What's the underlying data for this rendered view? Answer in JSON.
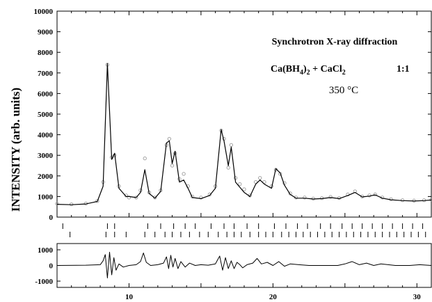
{
  "chart_data": {
    "type": "line",
    "ylabel": "INTENSITY (arb. units)",
    "xlim": [
      5,
      31
    ],
    "x_ticks": [
      "10",
      "20",
      "30"
    ],
    "x_tick_values": [
      10,
      20,
      30
    ],
    "main_panel": {
      "ylim": [
        0,
        10000
      ],
      "y_ticks": [
        "0",
        "1000",
        "2000",
        "3000",
        "4000",
        "5000",
        "6000",
        "7000",
        "8000",
        "9000",
        "10000"
      ],
      "y_tick_values": [
        0,
        1000,
        2000,
        3000,
        4000,
        5000,
        6000,
        7000,
        8000,
        9000,
        10000
      ],
      "series": [
        {
          "style": "open-circles",
          "x": [
            5.0,
            6.0,
            7.0,
            7.8,
            8.2,
            8.5,
            8.8,
            9.0,
            9.3,
            9.8,
            10.0,
            10.5,
            10.8,
            11.1,
            11.4,
            11.8,
            12.2,
            12.6,
            12.8,
            13.0,
            13.2,
            13.5,
            13.8,
            14.1,
            14.4,
            15.0,
            15.6,
            16.0,
            16.4,
            16.6,
            16.9,
            17.1,
            17.4,
            17.7,
            18.0,
            18.4,
            18.8,
            19.1,
            19.4,
            19.9,
            20.2,
            20.5,
            20.8,
            21.2,
            21.6,
            22.2,
            22.8,
            23.4,
            24.0,
            24.6,
            25.2,
            25.7,
            26.2,
            26.7,
            27.1,
            27.6,
            28.2,
            29.0,
            29.8,
            30.5,
            31.0
          ],
          "y": [
            650,
            620,
            660,
            780,
            1700,
            7400,
            2900,
            3000,
            1500,
            1050,
            950,
            950,
            1300,
            2850,
            1200,
            950,
            1300,
            3500,
            3800,
            2500,
            3100,
            1850,
            2100,
            1500,
            1000,
            950,
            1100,
            1500,
            4200,
            3800,
            2400,
            3500,
            1900,
            1600,
            1350,
            1050,
            1700,
            1900,
            1700,
            1500,
            2300,
            2100,
            1650,
            1150,
            950,
            950,
            900,
            920,
            980,
            930,
            1100,
            1250,
            1000,
            1050,
            1100,
            950,
            870,
            820,
            800,
            820,
            850
          ]
        },
        {
          "style": "solid-line",
          "x": [
            5.0,
            6.0,
            7.0,
            7.8,
            8.2,
            8.5,
            8.8,
            9.0,
            9.3,
            9.8,
            10.0,
            10.5,
            10.8,
            11.1,
            11.4,
            11.8,
            12.2,
            12.6,
            12.8,
            13.0,
            13.2,
            13.5,
            13.8,
            14.1,
            14.4,
            15.0,
            15.6,
            16.0,
            16.4,
            16.6,
            16.9,
            17.1,
            17.4,
            17.7,
            18.0,
            18.4,
            18.8,
            19.1,
            19.4,
            19.9,
            20.2,
            20.5,
            20.8,
            21.2,
            21.6,
            22.2,
            22.8,
            23.4,
            24.0,
            24.6,
            25.2,
            25.7,
            26.2,
            26.7,
            27.1,
            27.6,
            28.2,
            29.0,
            29.8,
            30.5,
            31.0
          ],
          "y": [
            620,
            600,
            640,
            760,
            1500,
            7450,
            2800,
            3100,
            1400,
            1000,
            1000,
            950,
            1200,
            2300,
            1150,
            920,
            1250,
            3600,
            3700,
            2600,
            3200,
            1700,
            1800,
            1400,
            950,
            900,
            1050,
            1400,
            4250,
            3700,
            2500,
            3400,
            1700,
            1450,
            1200,
            1000,
            1600,
            1800,
            1600,
            1400,
            2350,
            2150,
            1550,
            1100,
            920,
            920,
            880,
            900,
            950,
            900,
            1050,
            1200,
            980,
            1020,
            1080,
            920,
            840,
            800,
            780,
            800,
            830
          ]
        }
      ]
    },
    "reflection_ticks": {
      "rows": 2,
      "row1_x": [
        5.4,
        8.5,
        9.0,
        11.3,
        12.2,
        13.1,
        13.9,
        14.6,
        15.7,
        16.6,
        17.3,
        18.2,
        19.0,
        20.1,
        20.9,
        21.7,
        22.4,
        23.3,
        24.0,
        24.8,
        25.5,
        26.2,
        26.9,
        27.6,
        28.3,
        29.0,
        29.7,
        30.4
      ],
      "row2_x": [
        5.9,
        8.4,
        9.0,
        9.8,
        11.1,
        11.8,
        12.5,
        13.0,
        13.6,
        14.2,
        14.9,
        15.5,
        16.2,
        16.8,
        17.3,
        17.8,
        18.4,
        19.0,
        19.5,
        20.0,
        20.6,
        21.1,
        21.6,
        22.1,
        22.6,
        23.1,
        23.6,
        24.1,
        24.6,
        25.1,
        25.6,
        26.1,
        26.6,
        27.1,
        27.6,
        28.1,
        28.6,
        29.1,
        29.6,
        30.1,
        30.6
      ]
    },
    "difference_panel": {
      "ylim": [
        -1400,
        1400
      ],
      "y_ticks": [
        "1000",
        "0",
        "-1000"
      ],
      "y_tick_values": [
        1000,
        0,
        -1000
      ],
      "series": [
        {
          "style": "solid-line",
          "x": [
            5.0,
            7.0,
            8.0,
            8.2,
            8.35,
            8.5,
            8.65,
            8.8,
            8.95,
            9.1,
            9.3,
            9.6,
            10.0,
            10.5,
            10.8,
            11.0,
            11.2,
            11.5,
            12.0,
            12.4,
            12.6,
            12.75,
            12.9,
            13.05,
            13.2,
            13.4,
            13.6,
            13.9,
            14.2,
            14.6,
            15.0,
            15.5,
            16.0,
            16.3,
            16.5,
            16.7,
            16.9,
            17.1,
            17.3,
            17.5,
            17.7,
            17.9,
            18.2,
            18.6,
            18.9,
            19.2,
            19.6,
            20.0,
            20.4,
            20.8,
            21.2,
            21.8,
            22.5,
            23.5,
            24.5,
            25.0,
            25.5,
            26.0,
            26.5,
            27.0,
            27.5,
            28.5,
            29.5,
            30.2,
            31.0
          ],
          "y": [
            0,
            20,
            50,
            300,
            700,
            -800,
            850,
            -600,
            500,
            -300,
            100,
            -100,
            0,
            50,
            250,
            800,
            200,
            0,
            50,
            150,
            550,
            -200,
            650,
            -100,
            450,
            -200,
            250,
            -100,
            150,
            0,
            50,
            20,
            100,
            600,
            -300,
            500,
            -200,
            300,
            -200,
            200,
            50,
            -150,
            50,
            150,
            450,
            100,
            200,
            0,
            250,
            -50,
            100,
            50,
            0,
            0,
            0,
            100,
            250,
            50,
            150,
            0,
            100,
            0,
            0,
            50,
            0
          ]
        }
      ]
    },
    "annotations": {
      "line1": "Synchrotron X-ray diffraction",
      "line2_a": "Ca(BH",
      "line2_sub1": "4",
      "line2_b": ")",
      "line2_sub2": "2",
      "line2_c": " + CaCl",
      "line2_sub3": "2",
      "line2_ratio": "1:1",
      "line3": "350 °C"
    },
    "colors": {
      "observed": "#9a9a9a",
      "calculated": "#000000",
      "axes": "#000000"
    }
  }
}
